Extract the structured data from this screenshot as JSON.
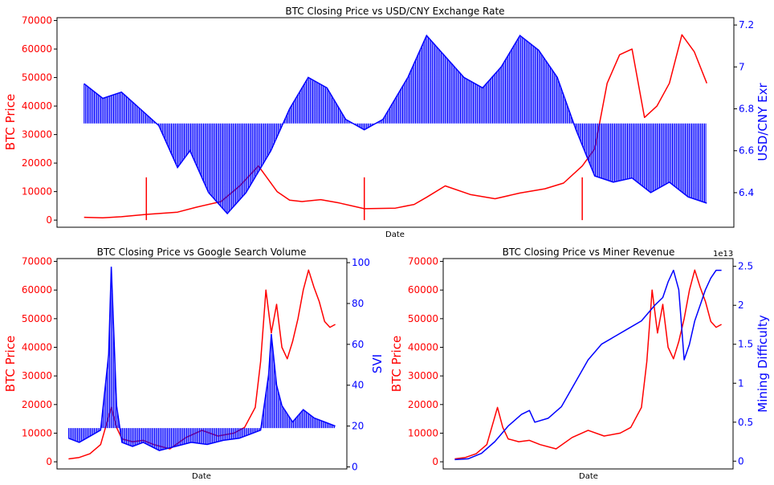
{
  "chart_data": [
    {
      "type": "line",
      "title": "BTC Closing Price vs USD/CNY Exchange Rate",
      "xlabel": "Date",
      "ylabel_left": "BTC Price",
      "ylabel_right": "USD/CNY Exr",
      "ylim_left": [
        -2500,
        71000
      ],
      "yticks_left": [
        0,
        10000,
        20000,
        30000,
        40000,
        50000,
        60000,
        70000
      ],
      "ylim_right": [
        6.235,
        7.235
      ],
      "yticks_right": [
        6.4,
        6.6,
        6.8,
        7.0,
        7.2
      ],
      "xlim": [
        0,
        100
      ],
      "left_color": "#ff0000",
      "right_color": "#0000ff",
      "right_style": "filled-to-baseline",
      "right_baseline": 6.73,
      "series": [
        {
          "axis": "left",
          "x": [
            0,
            3,
            6,
            10,
            15,
            18,
            22,
            25,
            28,
            31,
            33,
            35,
            38,
            41,
            45,
            50,
            53,
            55,
            58,
            62,
            66,
            70,
            74,
            77,
            80,
            82,
            84,
            86,
            88,
            90,
            92,
            94,
            96,
            98,
            100
          ],
          "y": [
            1000,
            800,
            1200,
            2000,
            2800,
            4500,
            6500,
            12000,
            19000,
            10000,
            7000,
            6500,
            7200,
            6000,
            4000,
            4200,
            5500,
            8000,
            12000,
            9000,
            7500,
            9500,
            11000,
            13000,
            19000,
            25000,
            48000,
            58000,
            60000,
            36000,
            40000,
            48000,
            65000,
            59000,
            48000
          ]
        },
        {
          "axis": "left",
          "x": [
            10,
            45,
            80
          ],
          "y": [
            15000,
            15000,
            15000
          ]
        },
        {
          "axis": "right",
          "x": [
            0,
            3,
            6,
            9,
            12,
            15,
            17,
            20,
            23,
            26,
            30,
            33,
            36,
            39,
            42,
            45,
            48,
            52,
            55,
            58,
            61,
            64,
            67,
            70,
            73,
            76,
            79,
            82,
            85,
            88,
            91,
            94,
            97,
            100
          ],
          "y": [
            6.92,
            6.85,
            6.88,
            6.8,
            6.72,
            6.52,
            6.6,
            6.4,
            6.3,
            6.4,
            6.6,
            6.8,
            6.95,
            6.9,
            6.75,
            6.7,
            6.75,
            6.95,
            7.15,
            7.05,
            6.95,
            6.9,
            7.0,
            7.15,
            7.08,
            6.95,
            6.7,
            6.48,
            6.45,
            6.47,
            6.4,
            6.45,
            6.38,
            6.35
          ]
        }
      ]
    },
    {
      "type": "line",
      "title": "BTC Closing Price vs Google Search Volume",
      "xlabel": "Date",
      "ylabel_left": "BTC Price",
      "ylabel_right": "SVI",
      "ylim_left": [
        -2500,
        71000
      ],
      "yticks_left": [
        0,
        10000,
        20000,
        30000,
        40000,
        50000,
        60000,
        70000
      ],
      "ylim_right": [
        -1,
        102
      ],
      "yticks_right": [
        0,
        20,
        40,
        60,
        80,
        100
      ],
      "xlim": [
        0,
        100
      ],
      "left_color": "#ff0000",
      "right_color": "#0000ff",
      "right_style": "filled-to-baseline",
      "right_baseline": 19,
      "series": [
        {
          "axis": "left",
          "x": [
            0,
            4,
            8,
            12,
            16,
            18,
            20,
            24,
            28,
            32,
            38,
            44,
            50,
            56,
            62,
            66,
            70,
            72,
            74,
            76,
            78,
            80,
            82,
            84,
            86,
            88,
            90,
            92,
            94,
            96,
            98,
            100
          ],
          "y": [
            1000,
            1500,
            2800,
            6000,
            19000,
            12000,
            8000,
            7000,
            7500,
            6000,
            4500,
            8500,
            11000,
            9000,
            10000,
            12000,
            19000,
            35000,
            60000,
            45000,
            55000,
            40000,
            36000,
            42000,
            50000,
            60000,
            67000,
            61000,
            56000,
            49000,
            47000,
            48000
          ]
        },
        {
          "axis": "right",
          "x": [
            0,
            4,
            8,
            12,
            15,
            16,
            18,
            20,
            24,
            28,
            34,
            40,
            46,
            52,
            58,
            64,
            68,
            72,
            75,
            76,
            78,
            80,
            84,
            88,
            92,
            96,
            100
          ],
          "y": [
            14,
            12,
            15,
            18,
            55,
            98,
            30,
            12,
            10,
            12,
            8,
            10,
            12,
            11,
            13,
            14,
            16,
            18,
            45,
            65,
            40,
            30,
            22,
            28,
            24,
            22,
            20
          ]
        }
      ]
    },
    {
      "type": "line",
      "title": "BTC Closing Price vs Miner Revenue",
      "xlabel": "Date",
      "ylabel_left": "BTC Price",
      "ylabel_right": "Mining Difficulty",
      "right_offset_text": "1e13",
      "ylim_left": [
        -2500,
        71000
      ],
      "yticks_left": [
        0,
        10000,
        20000,
        30000,
        40000,
        50000,
        60000,
        70000
      ],
      "ylim_right": [
        -0.1,
        2.6
      ],
      "yticks_right": [
        0.0,
        0.5,
        1.0,
        1.5,
        2.0,
        2.5
      ],
      "xlim": [
        0,
        100
      ],
      "left_color": "#ff0000",
      "right_color": "#0000ff",
      "series": [
        {
          "axis": "left",
          "x": [
            0,
            4,
            8,
            12,
            16,
            18,
            20,
            24,
            28,
            32,
            38,
            44,
            50,
            56,
            62,
            66,
            70,
            72,
            74,
            76,
            78,
            80,
            82,
            84,
            86,
            88,
            90,
            92,
            94,
            96,
            98,
            100
          ],
          "y": [
            1000,
            1500,
            2800,
            6000,
            19000,
            12000,
            8000,
            7000,
            7500,
            6000,
            4500,
            8500,
            11000,
            9000,
            10000,
            12000,
            19000,
            35000,
            60000,
            45000,
            55000,
            40000,
            36000,
            42000,
            50000,
            60000,
            67000,
            61000,
            56000,
            49000,
            47000,
            48000
          ]
        },
        {
          "axis": "right",
          "x": [
            0,
            5,
            10,
            15,
            20,
            25,
            28,
            30,
            35,
            40,
            45,
            50,
            55,
            60,
            65,
            70,
            75,
            78,
            80,
            82,
            84,
            86,
            88,
            90,
            92,
            94,
            96,
            98,
            100
          ],
          "y": [
            0.02,
            0.03,
            0.1,
            0.25,
            0.45,
            0.6,
            0.65,
            0.5,
            0.55,
            0.7,
            1.0,
            1.3,
            1.5,
            1.6,
            1.7,
            1.8,
            2.0,
            2.1,
            2.3,
            2.45,
            2.2,
            1.3,
            1.5,
            1.8,
            2.0,
            2.2,
            2.35,
            2.45,
            2.45
          ]
        }
      ]
    }
  ]
}
